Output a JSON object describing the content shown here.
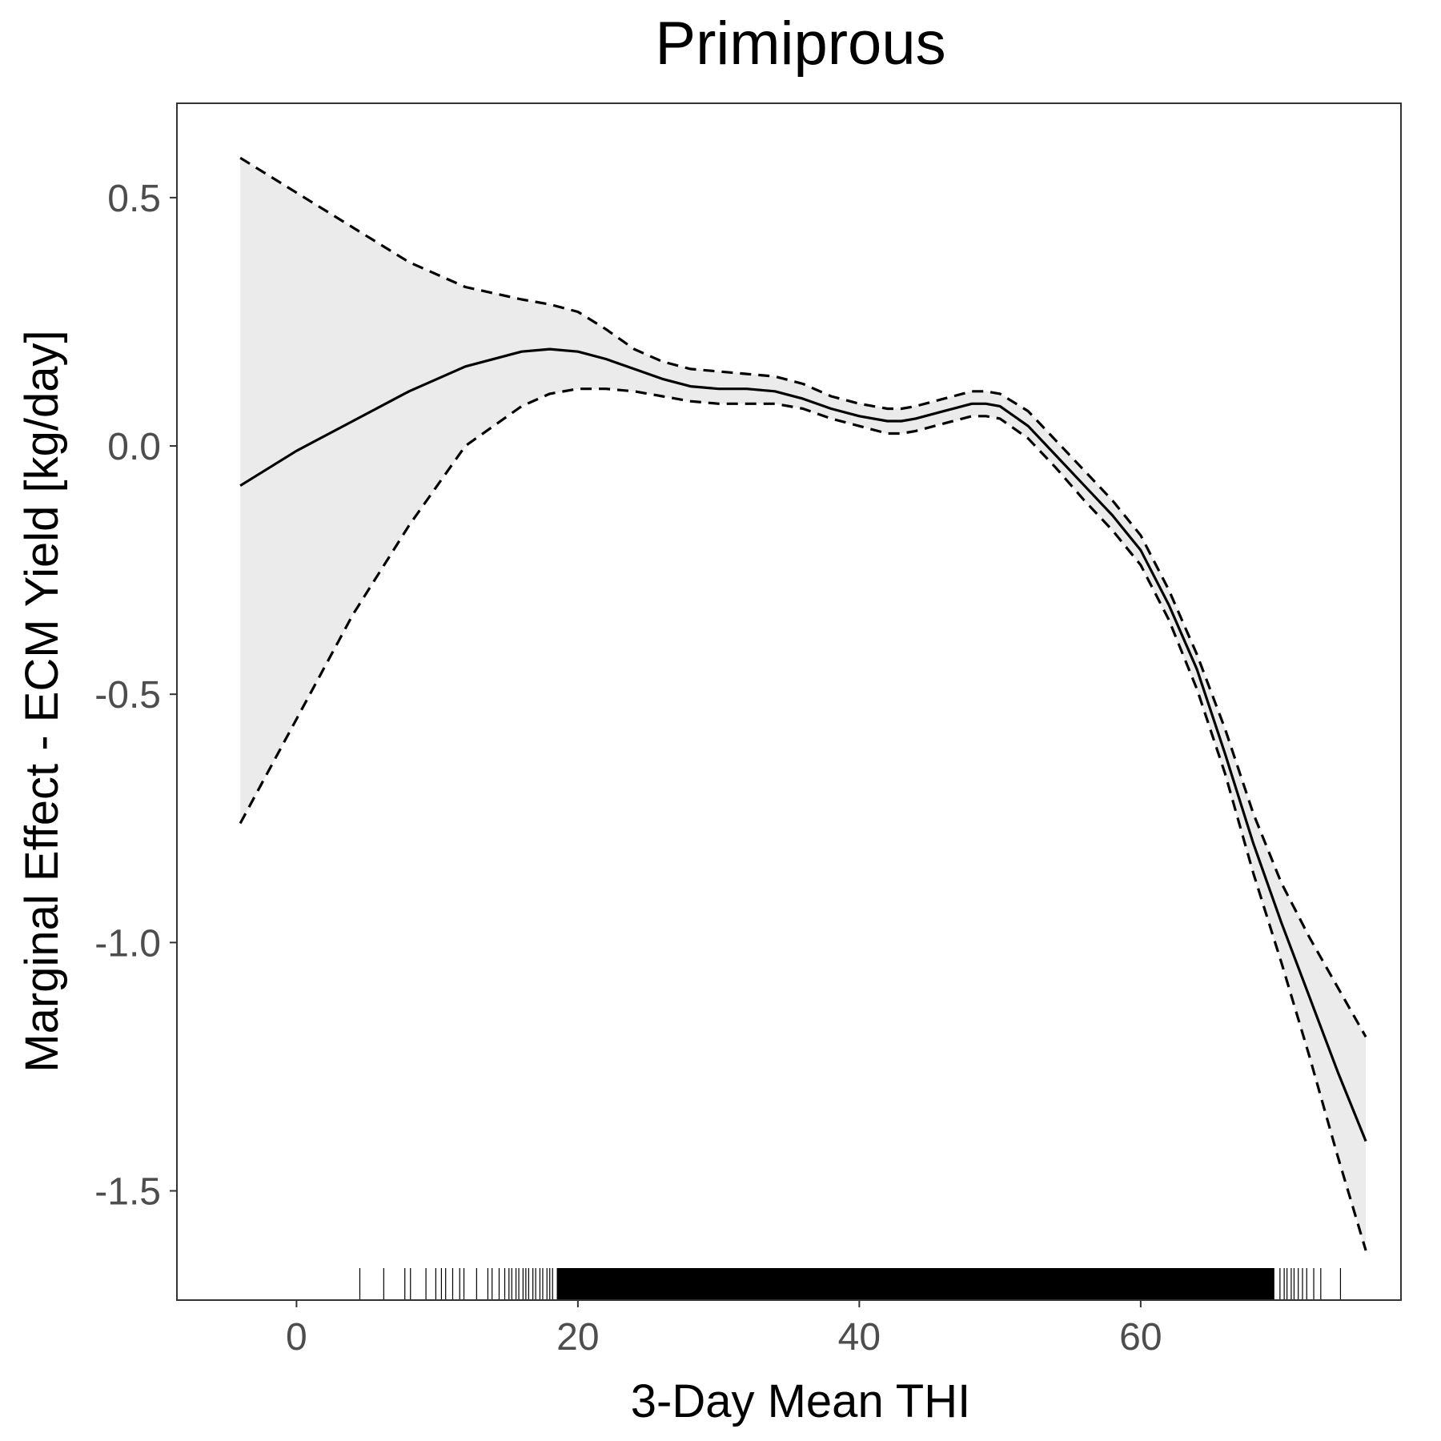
{
  "chart_data": {
    "type": "line",
    "title": "Primiprous",
    "xlabel": "3-Day Mean THI",
    "ylabel": "Marginal Effect - ECM Yield [kg/day]",
    "xlim": [
      -8.5,
      78.5
    ],
    "ylim": [
      -1.72,
      0.69
    ],
    "x_ticks": [
      0,
      20,
      40,
      60
    ],
    "x_tick_labels": [
      "0",
      "20",
      "40",
      "60"
    ],
    "y_ticks": [
      0.5,
      0.0,
      -0.5,
      -1.0,
      -1.5
    ],
    "y_tick_labels": [
      "0.5",
      "0.0",
      "-0.5",
      "-1.0",
      "-1.5"
    ],
    "grid": false,
    "colors": {
      "line": "#000000",
      "band": "#ebebeb",
      "panel_border": "#333333",
      "tick_label": "#4d4d4d"
    },
    "series": [
      {
        "role": "estimate",
        "style": "solid",
        "x": [
          -4,
          0,
          4,
          8,
          12,
          16,
          18,
          20,
          22,
          24,
          26,
          28,
          30,
          32,
          34,
          36,
          38,
          40,
          42,
          43,
          44,
          46,
          48,
          49,
          50,
          52,
          54,
          56,
          58,
          60,
          62,
          64,
          66,
          68,
          70,
          72,
          74,
          76
        ],
        "y": [
          -0.08,
          -0.01,
          0.05,
          0.11,
          0.16,
          0.19,
          0.195,
          0.19,
          0.175,
          0.155,
          0.135,
          0.12,
          0.115,
          0.115,
          0.11,
          0.095,
          0.075,
          0.06,
          0.05,
          0.05,
          0.055,
          0.07,
          0.085,
          0.085,
          0.08,
          0.04,
          -0.02,
          -0.08,
          -0.14,
          -0.21,
          -0.32,
          -0.45,
          -0.62,
          -0.8,
          -0.96,
          -1.11,
          -1.26,
          -1.4
        ]
      },
      {
        "role": "upper",
        "style": "dashed",
        "x": [
          -4,
          0,
          4,
          8,
          12,
          16,
          18,
          20,
          22,
          24,
          26,
          28,
          30,
          32,
          34,
          36,
          38,
          40,
          42,
          43,
          44,
          46,
          48,
          49,
          50,
          52,
          54,
          56,
          58,
          60,
          62,
          64,
          66,
          68,
          70,
          72,
          74,
          76
        ],
        "y": [
          0.58,
          0.51,
          0.44,
          0.37,
          0.32,
          0.295,
          0.285,
          0.27,
          0.235,
          0.195,
          0.17,
          0.155,
          0.15,
          0.145,
          0.14,
          0.125,
          0.1,
          0.085,
          0.075,
          0.075,
          0.08,
          0.095,
          0.11,
          0.11,
          0.105,
          0.07,
          0.01,
          -0.05,
          -0.11,
          -0.18,
          -0.29,
          -0.42,
          -0.57,
          -0.74,
          -0.88,
          -0.99,
          -1.09,
          -1.19
        ]
      },
      {
        "role": "lower",
        "style": "dashed",
        "x": [
          -4,
          0,
          4,
          8,
          12,
          16,
          18,
          20,
          22,
          24,
          26,
          28,
          30,
          32,
          34,
          36,
          38,
          40,
          42,
          43,
          44,
          46,
          48,
          49,
          50,
          52,
          54,
          56,
          58,
          60,
          62,
          64,
          66,
          68,
          70,
          72,
          74,
          76
        ],
        "y": [
          -0.76,
          -0.55,
          -0.34,
          -0.16,
          0.0,
          0.08,
          0.105,
          0.115,
          0.115,
          0.11,
          0.1,
          0.09,
          0.085,
          0.085,
          0.085,
          0.075,
          0.055,
          0.04,
          0.025,
          0.025,
          0.03,
          0.045,
          0.06,
          0.06,
          0.055,
          0.015,
          -0.045,
          -0.11,
          -0.17,
          -0.24,
          -0.35,
          -0.49,
          -0.66,
          -0.86,
          -1.04,
          -1.23,
          -1.43,
          -1.62
        ]
      }
    ],
    "rug": {
      "x_min": 4.5,
      "x_max": 74.2,
      "dense_from": 18.5,
      "dense_to": 69.5,
      "sparse_x": [
        4.5,
        6.2,
        7.7,
        8.1,
        9.2,
        9.9,
        10.3,
        10.6,
        11.1,
        11.6,
        11.9,
        12.8,
        13.6,
        13.9,
        14.4,
        14.8,
        15.1,
        15.3,
        15.6,
        15.8,
        16.1,
        16.3,
        16.5,
        16.8,
        17.0,
        17.3,
        17.5,
        17.8,
        18.0,
        18.2,
        69.9,
        70.2,
        70.4,
        70.7,
        70.9,
        71.2,
        71.5,
        71.8,
        72.3,
        72.8,
        74.2
      ]
    }
  }
}
